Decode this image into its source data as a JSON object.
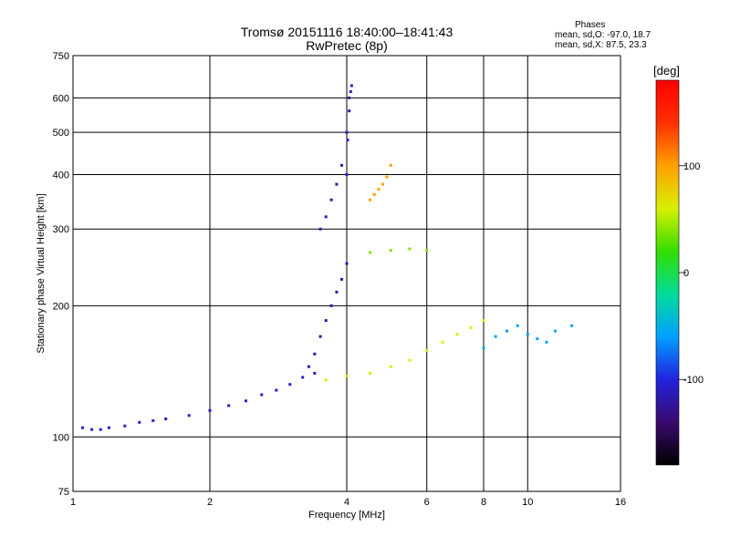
{
  "header": {
    "title": "Tromsø 20151116 18:40:00–18:41:43",
    "subtitle": "RwPretec (8p)"
  },
  "phase_info": {
    "heading": "Phases",
    "line_o": "mean, sd,O: -97.0, 18.7",
    "line_x": "mean, sd,X:  87.5, 23.3"
  },
  "chart_data": {
    "type": "scatter",
    "xlabel": "Frequency [MHz]",
    "ylabel": "Stationary phase Virtual Height [km]",
    "x_scale": "log",
    "y_scale": "log",
    "xlim": [
      1,
      16
    ],
    "ylim": [
      75,
      750
    ],
    "x_ticks": [
      1,
      2,
      4,
      6,
      8,
      10,
      16
    ],
    "y_ticks": [
      75,
      100,
      200,
      300,
      400,
      500,
      600,
      750
    ],
    "x_grid": [
      2,
      4,
      6,
      8,
      10
    ],
    "y_grid": [
      100,
      200,
      300,
      400,
      500,
      600
    ],
    "grid": true,
    "colorbar": {
      "label": "[deg]",
      "range": [
        -180,
        180
      ],
      "ticks": [
        100,
        0,
        -100
      ],
      "colors": [
        "#000000",
        "#3a0a6e",
        "#2222dd",
        "#00a0ff",
        "#00dd99",
        "#33dd00",
        "#d8f000",
        "#ffa000",
        "#ff3000",
        "#ff0000"
      ]
    },
    "series": [
      {
        "x": [
          1.05,
          1.1,
          1.15,
          1.2,
          1.3,
          1.4,
          1.5,
          1.6,
          1.8,
          2.0,
          2.2,
          2.4,
          2.6,
          2.8,
          3.0,
          3.2,
          3.4
        ],
        "y": [
          105,
          104,
          104,
          105,
          106,
          108,
          109,
          110,
          112,
          115,
          118,
          121,
          125,
          128,
          132,
          137,
          140
        ],
        "phase": -105
      },
      {
        "x": [
          3.3,
          3.4,
          3.5,
          3.6,
          3.7,
          3.8,
          3.9,
          4.0
        ],
        "y": [
          145,
          155,
          170,
          185,
          200,
          215,
          230,
          250
        ],
        "phase": -120
      },
      {
        "x": [
          3.5,
          3.6,
          3.7,
          3.8,
          3.9,
          4.0,
          4.05
        ],
        "y": [
          300,
          320,
          350,
          380,
          420,
          500,
          600
        ],
        "phase": -115
      },
      {
        "x": [
          4.0,
          4.02,
          4.05,
          4.08,
          4.1
        ],
        "y": [
          400,
          480,
          560,
          620,
          640
        ],
        "phase": -105
      },
      {
        "x": [
          4.5,
          4.6,
          4.7,
          4.8,
          4.9,
          5.0
        ],
        "y": [
          350,
          360,
          370,
          380,
          395,
          420
        ],
        "phase": 100
      },
      {
        "x": [
          3.6,
          4.0,
          4.5,
          5.0,
          5.5,
          6.0,
          6.5,
          7.0,
          7.5,
          8.0
        ],
        "y": [
          135,
          138,
          140,
          145,
          150,
          158,
          165,
          172,
          178,
          185
        ],
        "phase": 60
      },
      {
        "x": [
          4.5,
          5.0,
          5.5,
          6.0
        ],
        "y": [
          265,
          268,
          270,
          268
        ],
        "phase": 40
      },
      {
        "x": [
          8.0,
          8.5,
          9.0,
          9.5,
          10.0,
          10.5,
          11.0,
          11.5,
          12.5
        ],
        "y": [
          160,
          170,
          175,
          180,
          172,
          168,
          165,
          175,
          180
        ],
        "phase": -60
      }
    ]
  }
}
